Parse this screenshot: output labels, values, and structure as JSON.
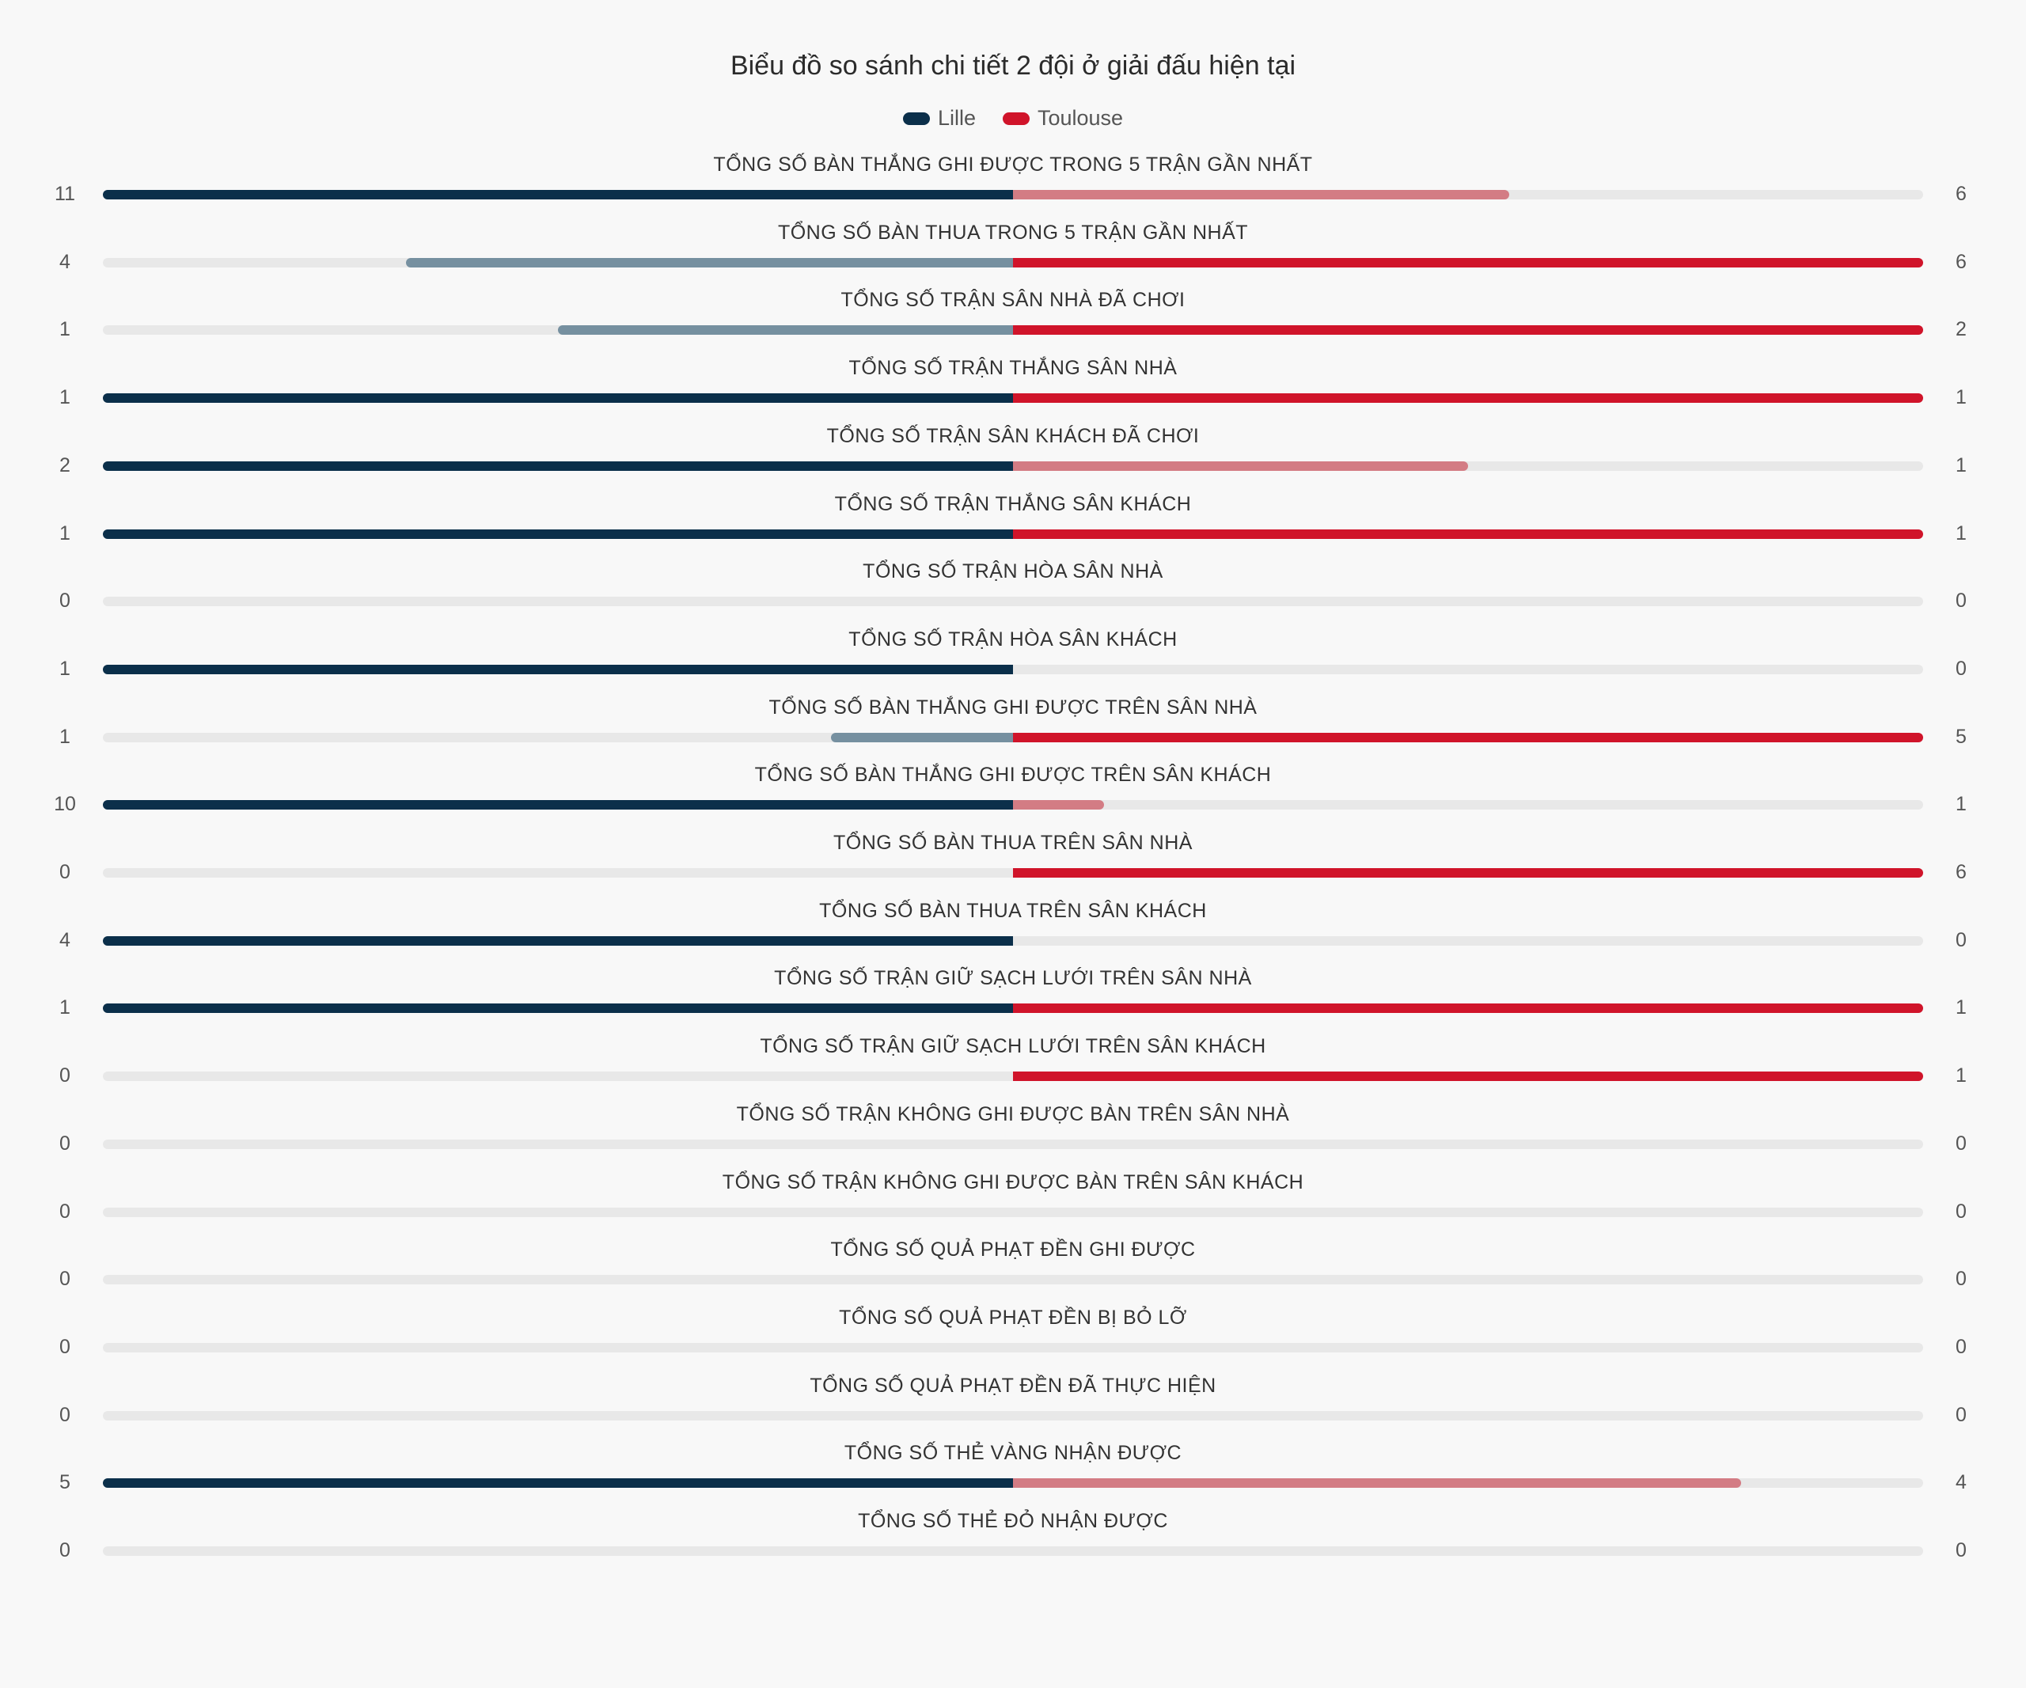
{
  "chart_data": {
    "type": "bar",
    "title": "Biểu đồ so sánh chi tiết 2 đội ở giải đấu hiện tại",
    "legend_position": "top-center",
    "series": [
      {
        "name": "Lille",
        "color": "#0b2f4a",
        "muted_color": "#7690a0"
      },
      {
        "name": "Toulouse",
        "color": "#d0142a",
        "muted_color": "#d37c84"
      }
    ],
    "track_color": "#e8e8e8",
    "categories": [
      "TỔNG SỐ BÀN THẮNG GHI ĐƯỢC TRONG 5 TRẬN GẦN NHẤT",
      "TỔNG SỐ BÀN THUA TRONG 5 TRẬN GẦN NHẤT",
      "TỔNG SỐ TRẬN SÂN NHÀ ĐÃ CHƠI",
      "TỔNG SỐ TRẬN THẮNG SÂN NHÀ",
      "TỔNG SỐ TRẬN SÂN KHÁCH ĐÃ CHƠI",
      "TỔNG SỐ TRẬN THẮNG SÂN KHÁCH",
      "TỔNG SỐ TRẬN HÒA SÂN NHÀ",
      "TỔNG SỐ TRẬN HÒA SÂN KHÁCH",
      "TỔNG SỐ BÀN THẮNG GHI ĐƯỢC TRÊN SÂN NHÀ",
      "TỔNG SỐ BÀN THẮNG GHI ĐƯỢC TRÊN SÂN KHÁCH",
      "TỔNG SỐ BÀN THUA TRÊN SÂN NHÀ",
      "TỔNG SỐ BÀN THUA TRÊN SÂN KHÁCH",
      "TỔNG SỐ TRẬN GIỮ SẠCH LƯỚI TRÊN SÂN NHÀ",
      "TỔNG SỐ TRẬN GIỮ SẠCH LƯỚI TRÊN SÂN KHÁCH",
      "TỔNG SỐ TRẬN KHÔNG GHI ĐƯỢC BÀN TRÊN SÂN NHÀ",
      "TỔNG SỐ TRẬN KHÔNG GHI ĐƯỢC BÀN TRÊN SÂN KHÁCH",
      "TỔNG SỐ QUẢ PHẠT ĐỀN GHI ĐƯỢC",
      "TỔNG SỐ QUẢ PHẠT ĐỀN BỊ BỎ LỠ",
      "TỔNG SỐ QUẢ PHẠT ĐỀN ĐÃ THỰC HIỆN",
      "TỔNG SỐ THẺ VÀNG NHẬN ĐƯỢC",
      "TỔNG SỐ THẺ ĐỎ NHẬN ĐƯỢC"
    ],
    "values_lille": [
      11,
      4,
      1,
      1,
      2,
      1,
      0,
      1,
      1,
      10,
      0,
      4,
      1,
      0,
      0,
      0,
      0,
      0,
      0,
      5,
      0
    ],
    "values_toulouse": [
      6,
      6,
      2,
      1,
      1,
      1,
      0,
      0,
      5,
      1,
      6,
      0,
      1,
      1,
      0,
      0,
      0,
      0,
      0,
      4,
      0
    ]
  }
}
